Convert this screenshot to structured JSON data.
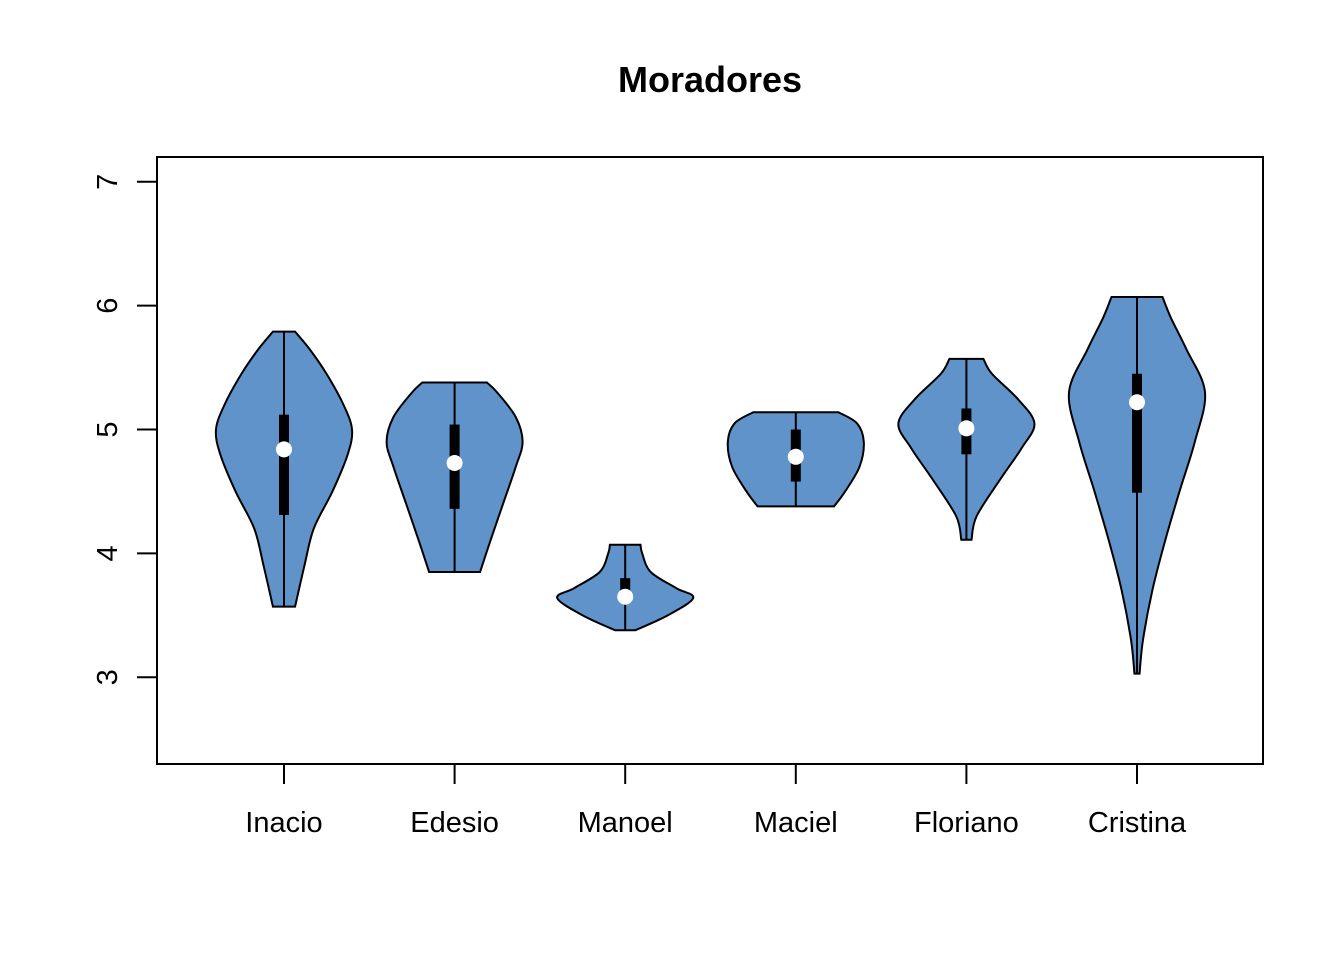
{
  "chart_data": {
    "type": "violin",
    "title": "Moradores",
    "xlabel": "",
    "ylabel": "",
    "ylim": [
      2.3,
      7.2
    ],
    "yticks": [
      3,
      4,
      5,
      6,
      7
    ],
    "grid": false,
    "fill_color": "#5F93CA",
    "categories": [
      "Inacio",
      "Edesio",
      "Manoel",
      "Maciel",
      "Floriano",
      "Cristina"
    ],
    "series": [
      {
        "category": "Inacio",
        "min": 3.57,
        "q1": 4.31,
        "median": 4.84,
        "q3": 5.12,
        "max": 5.79,
        "density": [
          [
            3.57,
            0.13
          ],
          [
            3.9,
            0.24
          ],
          [
            4.2,
            0.35
          ],
          [
            4.5,
            0.57
          ],
          [
            4.8,
            0.75
          ],
          [
            5.0,
            0.8
          ],
          [
            5.2,
            0.7
          ],
          [
            5.45,
            0.5
          ],
          [
            5.65,
            0.3
          ],
          [
            5.79,
            0.13
          ]
        ]
      },
      {
        "category": "Edesio",
        "min": 3.85,
        "q1": 4.36,
        "median": 4.73,
        "q3": 5.04,
        "max": 5.38,
        "density": [
          [
            3.85,
            0.3
          ],
          [
            4.1,
            0.42
          ],
          [
            4.4,
            0.57
          ],
          [
            4.7,
            0.72
          ],
          [
            4.9,
            0.8
          ],
          [
            5.1,
            0.72
          ],
          [
            5.3,
            0.5
          ],
          [
            5.38,
            0.38
          ]
        ]
      },
      {
        "category": "Manoel",
        "min": 3.38,
        "q1": 3.65,
        "median": 3.65,
        "q3": 3.8,
        "max": 4.07,
        "density": [
          [
            3.38,
            0.12
          ],
          [
            3.5,
            0.5
          ],
          [
            3.64,
            0.8
          ],
          [
            3.72,
            0.6
          ],
          [
            3.85,
            0.3
          ],
          [
            4.0,
            0.2
          ],
          [
            4.07,
            0.18
          ]
        ]
      },
      {
        "category": "Maciel",
        "min": 4.38,
        "q1": 4.58,
        "median": 4.78,
        "q3": 5.0,
        "max": 5.14,
        "density": [
          [
            4.38,
            0.45
          ],
          [
            4.5,
            0.58
          ],
          [
            4.7,
            0.75
          ],
          [
            4.9,
            0.8
          ],
          [
            5.05,
            0.72
          ],
          [
            5.14,
            0.5
          ]
        ]
      },
      {
        "category": "Floriano",
        "min": 4.11,
        "q1": 4.8,
        "median": 5.01,
        "q3": 5.17,
        "max": 5.57,
        "density": [
          [
            4.11,
            0.06
          ],
          [
            4.3,
            0.12
          ],
          [
            4.6,
            0.4
          ],
          [
            4.85,
            0.65
          ],
          [
            5.05,
            0.8
          ],
          [
            5.25,
            0.6
          ],
          [
            5.45,
            0.3
          ],
          [
            5.57,
            0.2
          ]
        ]
      },
      {
        "category": "Cristina",
        "min": 3.03,
        "q1": 4.49,
        "median": 5.22,
        "q3": 5.45,
        "max": 6.07,
        "density": [
          [
            3.03,
            0.03
          ],
          [
            3.3,
            0.07
          ],
          [
            3.7,
            0.18
          ],
          [
            4.1,
            0.33
          ],
          [
            4.5,
            0.5
          ],
          [
            4.9,
            0.68
          ],
          [
            5.3,
            0.8
          ],
          [
            5.65,
            0.58
          ],
          [
            5.9,
            0.4
          ],
          [
            6.07,
            0.3
          ]
        ]
      }
    ]
  }
}
